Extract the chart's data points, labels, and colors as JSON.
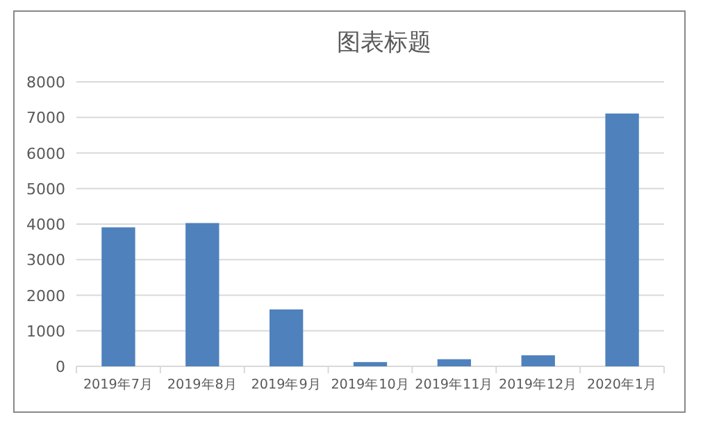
{
  "chart_data": {
    "type": "bar",
    "title": "图表标题",
    "categories": [
      "2019年7月",
      "2019年8月",
      "2019年9月",
      "2019年10月",
      "2019年11月",
      "2019年12月",
      "2020年1月"
    ],
    "values": [
      3910,
      4030,
      1600,
      120,
      200,
      310,
      7110
    ],
    "color": "#4f81bd",
    "ylim": [
      0,
      8000
    ],
    "yticks": [
      0,
      1000,
      2000,
      3000,
      4000,
      5000,
      6000,
      7000,
      8000
    ],
    "grid": "y"
  }
}
